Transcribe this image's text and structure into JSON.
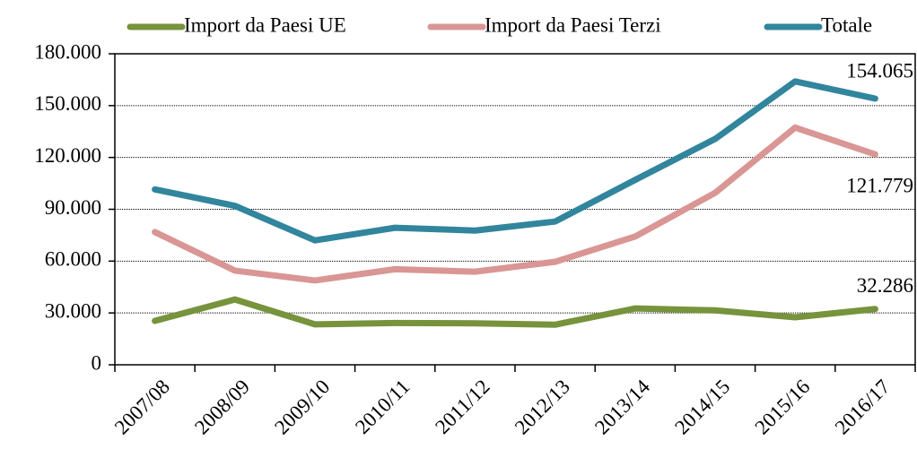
{
  "chart_data": {
    "type": "line",
    "categories": [
      "2007/08",
      "2008/09",
      "2009/10",
      "2010/11",
      "2011/12",
      "2012/13",
      "2013/14",
      "2014/15",
      "2015/16",
      "2016/17"
    ],
    "series": [
      {
        "name": "Import da Paesi UE",
        "color": "#77933c",
        "values": [
          25400,
          37800,
          23400,
          24200,
          24000,
          23200,
          32600,
          31500,
          27500,
          32286
        ],
        "value_labels": [
          null,
          null,
          null,
          null,
          null,
          null,
          null,
          null,
          null,
          "32.286"
        ]
      },
      {
        "name": "Import da Paesi Terzi",
        "color": "#d99694",
        "values": [
          76800,
          54500,
          48800,
          55300,
          53900,
          59600,
          74200,
          99500,
          137300,
          121779
        ],
        "value_labels": [
          null,
          null,
          null,
          null,
          null,
          null,
          null,
          null,
          null,
          "121.779"
        ]
      },
      {
        "name": "Totale",
        "color": "#31859c",
        "values": [
          101500,
          92000,
          72000,
          79300,
          77700,
          82900,
          107000,
          130700,
          164000,
          154065
        ],
        "value_labels": [
          null,
          null,
          null,
          null,
          null,
          null,
          null,
          null,
          null,
          "154.065"
        ]
      }
    ],
    "ylim": [
      0,
      180000
    ],
    "yticks": [
      0,
      {
        "value": 30000,
        "label": "30.000"
      },
      {
        "value": 60000,
        "label": "60.000"
      },
      {
        "value": 90000,
        "label": "90.000"
      },
      {
        "value": 120000,
        "label": "120.000"
      },
      {
        "value": 150000,
        "label": "150.000"
      },
      {
        "value": 180000,
        "label": "180.000"
      }
    ],
    "grid": true,
    "legend": "top"
  }
}
